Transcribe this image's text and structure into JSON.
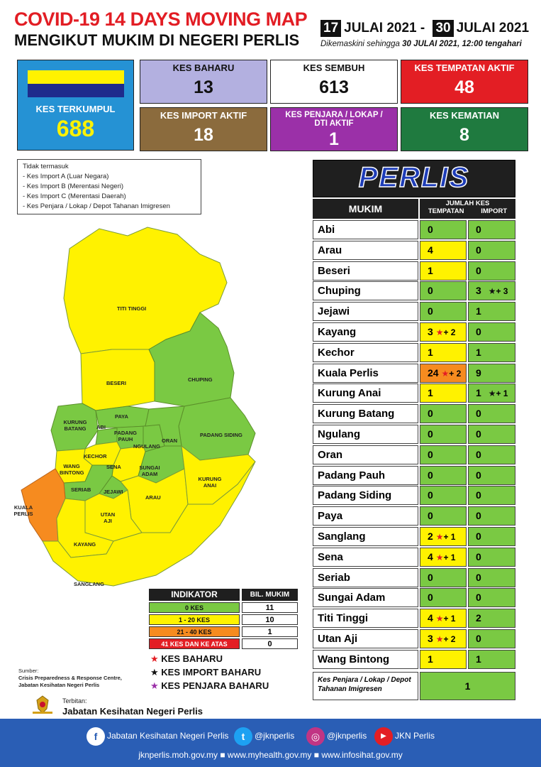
{
  "header": {
    "title": "COVID-19 14 DAYS MOVING MAP",
    "subtitle": "MENGIKUT MUKIM DI NEGERI PERLIS",
    "date_start_day": "17",
    "date_start_rest": "JULAI 2021 -",
    "date_end_day": "30",
    "date_end_rest": "JULAI 2021",
    "updated_prefix": "Dikemaskini sehingga",
    "updated_value": "30 JULAI 2021, 12:00 tengahari"
  },
  "stats": {
    "terkumpul": {
      "label": "KES TERKUMPUL",
      "value": "688",
      "color": "#2592d4"
    },
    "baharu": {
      "label": "KES BAHARU",
      "value": "13",
      "color": "#b3b0e0"
    },
    "sembuh": {
      "label": "KES SEMBUH",
      "value": "613",
      "color": "#ffffff"
    },
    "tempatan_aktif": {
      "label": "KES TEMPATAN AKTIF",
      "value": "48",
      "color": "#e31e24"
    },
    "import_aktif": {
      "label": "KES IMPORT AKTIF",
      "value": "18",
      "color": "#8b6b3d"
    },
    "penjara_aktif": {
      "label": "KES PENJARA / LOKAP / DTI AKTIF",
      "value": "1",
      "color": "#9b30a8"
    },
    "kematian": {
      "label": "KES KEMATIAN",
      "value": "8",
      "color": "#1f7a3f"
    }
  },
  "exclusions": {
    "title": "Tidak termasuk",
    "items": [
      "- Kes Import A (Luar Negara)",
      "- Kes Import B (Merentasi Negeri)",
      "- Kes Import C (Merentasi Daerah)",
      "- Kes Penjara / Lokap / Depot Tahanan Imigresen"
    ]
  },
  "table": {
    "state": "PERLIS",
    "col_mukim": "MUKIM",
    "col_jumlah": "JUMLAH KES",
    "col_tempatan": "TEMPATAN",
    "col_import": "IMPORT",
    "rows": [
      {
        "name": "Abi",
        "tempatan": "0",
        "t_new": "",
        "t_color": "#7ac943",
        "import": "0",
        "i_new": ""
      },
      {
        "name": "Arau",
        "tempatan": "4",
        "t_new": "",
        "t_color": "#fff200",
        "import": "0",
        "i_new": ""
      },
      {
        "name": "Beseri",
        "tempatan": "1",
        "t_new": "",
        "t_color": "#fff200",
        "import": "0",
        "i_new": ""
      },
      {
        "name": "Chuping",
        "tempatan": "0",
        "t_new": "",
        "t_color": "#7ac943",
        "import": "3",
        "i_new": "+ 3"
      },
      {
        "name": "Jejawi",
        "tempatan": "0",
        "t_new": "",
        "t_color": "#7ac943",
        "import": "1",
        "i_new": ""
      },
      {
        "name": "Kayang",
        "tempatan": "3",
        "t_new": "+ 2",
        "t_color": "#fff200",
        "import": "0",
        "i_new": ""
      },
      {
        "name": "Kechor",
        "tempatan": "1",
        "t_new": "",
        "t_color": "#fff200",
        "import": "1",
        "i_new": ""
      },
      {
        "name": "Kuala Perlis",
        "tempatan": "24",
        "t_new": "+ 2",
        "t_color": "#f68b1f",
        "import": "9",
        "i_new": ""
      },
      {
        "name": "Kurung Anai",
        "tempatan": "1",
        "t_new": "",
        "t_color": "#fff200",
        "import": "1",
        "i_new": "+ 1"
      },
      {
        "name": "Kurung Batang",
        "tempatan": "0",
        "t_new": "",
        "t_color": "#7ac943",
        "import": "0",
        "i_new": ""
      },
      {
        "name": "Ngulang",
        "tempatan": "0",
        "t_new": "",
        "t_color": "#7ac943",
        "import": "0",
        "i_new": ""
      },
      {
        "name": "Oran",
        "tempatan": "0",
        "t_new": "",
        "t_color": "#7ac943",
        "import": "0",
        "i_new": ""
      },
      {
        "name": "Padang Pauh",
        "tempatan": "0",
        "t_new": "",
        "t_color": "#7ac943",
        "import": "0",
        "i_new": ""
      },
      {
        "name": "Padang Siding",
        "tempatan": "0",
        "t_new": "",
        "t_color": "#7ac943",
        "import": "0",
        "i_new": ""
      },
      {
        "name": "Paya",
        "tempatan": "0",
        "t_new": "",
        "t_color": "#7ac943",
        "import": "0",
        "i_new": ""
      },
      {
        "name": "Sanglang",
        "tempatan": "2",
        "t_new": "+ 1",
        "t_color": "#fff200",
        "import": "0",
        "i_new": ""
      },
      {
        "name": "Sena",
        "tempatan": "4",
        "t_new": "+ 1",
        "t_color": "#fff200",
        "import": "0",
        "i_new": ""
      },
      {
        "name": "Seriab",
        "tempatan": "0",
        "t_new": "",
        "t_color": "#7ac943",
        "import": "0",
        "i_new": ""
      },
      {
        "name": "Sungai Adam",
        "tempatan": "0",
        "t_new": "",
        "t_color": "#7ac943",
        "import": "0",
        "i_new": ""
      },
      {
        "name": "Titi Tinggi",
        "tempatan": "4",
        "t_new": "+ 1",
        "t_color": "#fff200",
        "import": "2",
        "i_new": ""
      },
      {
        "name": "Utan Aji",
        "tempatan": "3",
        "t_new": "+ 2",
        "t_color": "#fff200",
        "import": "0",
        "i_new": ""
      },
      {
        "name": "Wang Bintong",
        "tempatan": "1",
        "t_new": "",
        "t_color": "#fff200",
        "import": "1",
        "i_new": ""
      }
    ],
    "penjara_label": "Kes Penjara / Lokap / Depot Tahanan Imigresen",
    "penjara_value": "1"
  },
  "map_labels": [
    "TITI TINGGI",
    "BESERI",
    "CHUPING",
    "KURUNG BATANG",
    "PAYA",
    "ABI",
    "PADANG PAUH",
    "NGULANG",
    "ORAN",
    "PADANG SIDING",
    "KECHOR",
    "WANG BINTONG",
    "SENA",
    "SUNGAI ADAM",
    "SERIAB",
    "JEJAWI",
    "ARAU",
    "KURUNG ANAI",
    "KUALA PERLIS",
    "UTAN AJI",
    "KAYANG",
    "SANGLANG"
  ],
  "indicator": {
    "col_indikator": "INDIKATOR",
    "col_bil": "BIL. MUKIM",
    "rows": [
      {
        "label": "0 KES",
        "count": "11",
        "color": "#7ac943"
      },
      {
        "label": "1 - 20 KES",
        "count": "10",
        "color": "#fff200"
      },
      {
        "label": "21 - 40 KES",
        "count": "1",
        "color": "#f68b1f"
      },
      {
        "label": "41 KES DAN KE ATAS",
        "count": "0",
        "color": "#e31e24"
      }
    ]
  },
  "symbols": [
    {
      "label": "KES BAHARU",
      "color": "#e31e24"
    },
    {
      "label": "KES IMPORT BAHARU",
      "color": "#111111"
    },
    {
      "label": "KES PENJARA BAHARU",
      "color": "#9b30a8"
    }
  ],
  "source": {
    "prefix": "Sumber:",
    "text": "Crisis Preparedness & Response Centre, Jabatan Kesihatan Negeri Perlis"
  },
  "publisher": {
    "prefix": "Terbitan:",
    "name": "Jabatan Kesihatan Negeri Perlis"
  },
  "footer": {
    "facebook": "Jabatan Kesihatan Negeri Perlis",
    "twitter": "@jknperlis",
    "instagram": "@jknperlis",
    "youtube": "JKN Perlis",
    "urls": "jknperlis.moh.gov.my ■ www.myhealth.gov.my ■ www.infosihat.gov.my"
  }
}
